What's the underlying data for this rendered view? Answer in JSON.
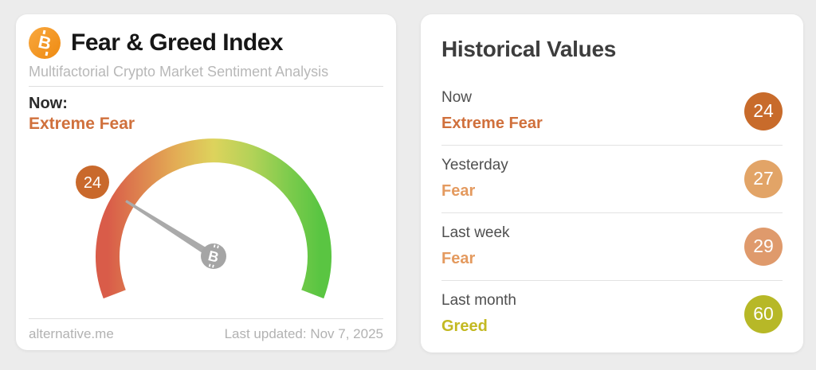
{
  "fear_greed_card": {
    "title": "Fear & Greed Index",
    "subtitle": "Multifactorial Crypto Market Sentiment Analysis",
    "now_label": "Now:",
    "now_classification": "Extreme Fear",
    "gauge": {
      "value": 24,
      "min": 0,
      "max": 100,
      "badge_color": "#c9692c"
    },
    "footer": {
      "source": "alternative.me",
      "last_updated": "Last updated: Nov 7, 2025"
    }
  },
  "historical_card": {
    "title": "Historical Values",
    "rows": [
      {
        "period": "Now",
        "classification": "Extreme Fear",
        "value": "24",
        "badge_color": "#c86b2b",
        "classification_color": "#d0703c"
      },
      {
        "period": "Yesterday",
        "classification": "Fear",
        "value": "27",
        "badge_color": "#e2a467",
        "classification_color": "#e49a5f"
      },
      {
        "period": "Last week",
        "classification": "Fear",
        "value": "29",
        "badge_color": "#df9a6c",
        "classification_color": "#e49a5f"
      },
      {
        "period": "Last month",
        "classification": "Greed",
        "value": "60",
        "badge_color": "#b7b827",
        "classification_color": "#c3b922"
      }
    ]
  },
  "colors": {
    "bitcoin_orange": "#f7931a",
    "gauge_red": "#d95c49",
    "gauge_yellow": "#ddd35c",
    "gauge_green": "#5ac542",
    "needle_gray": "#a9a9a9"
  }
}
